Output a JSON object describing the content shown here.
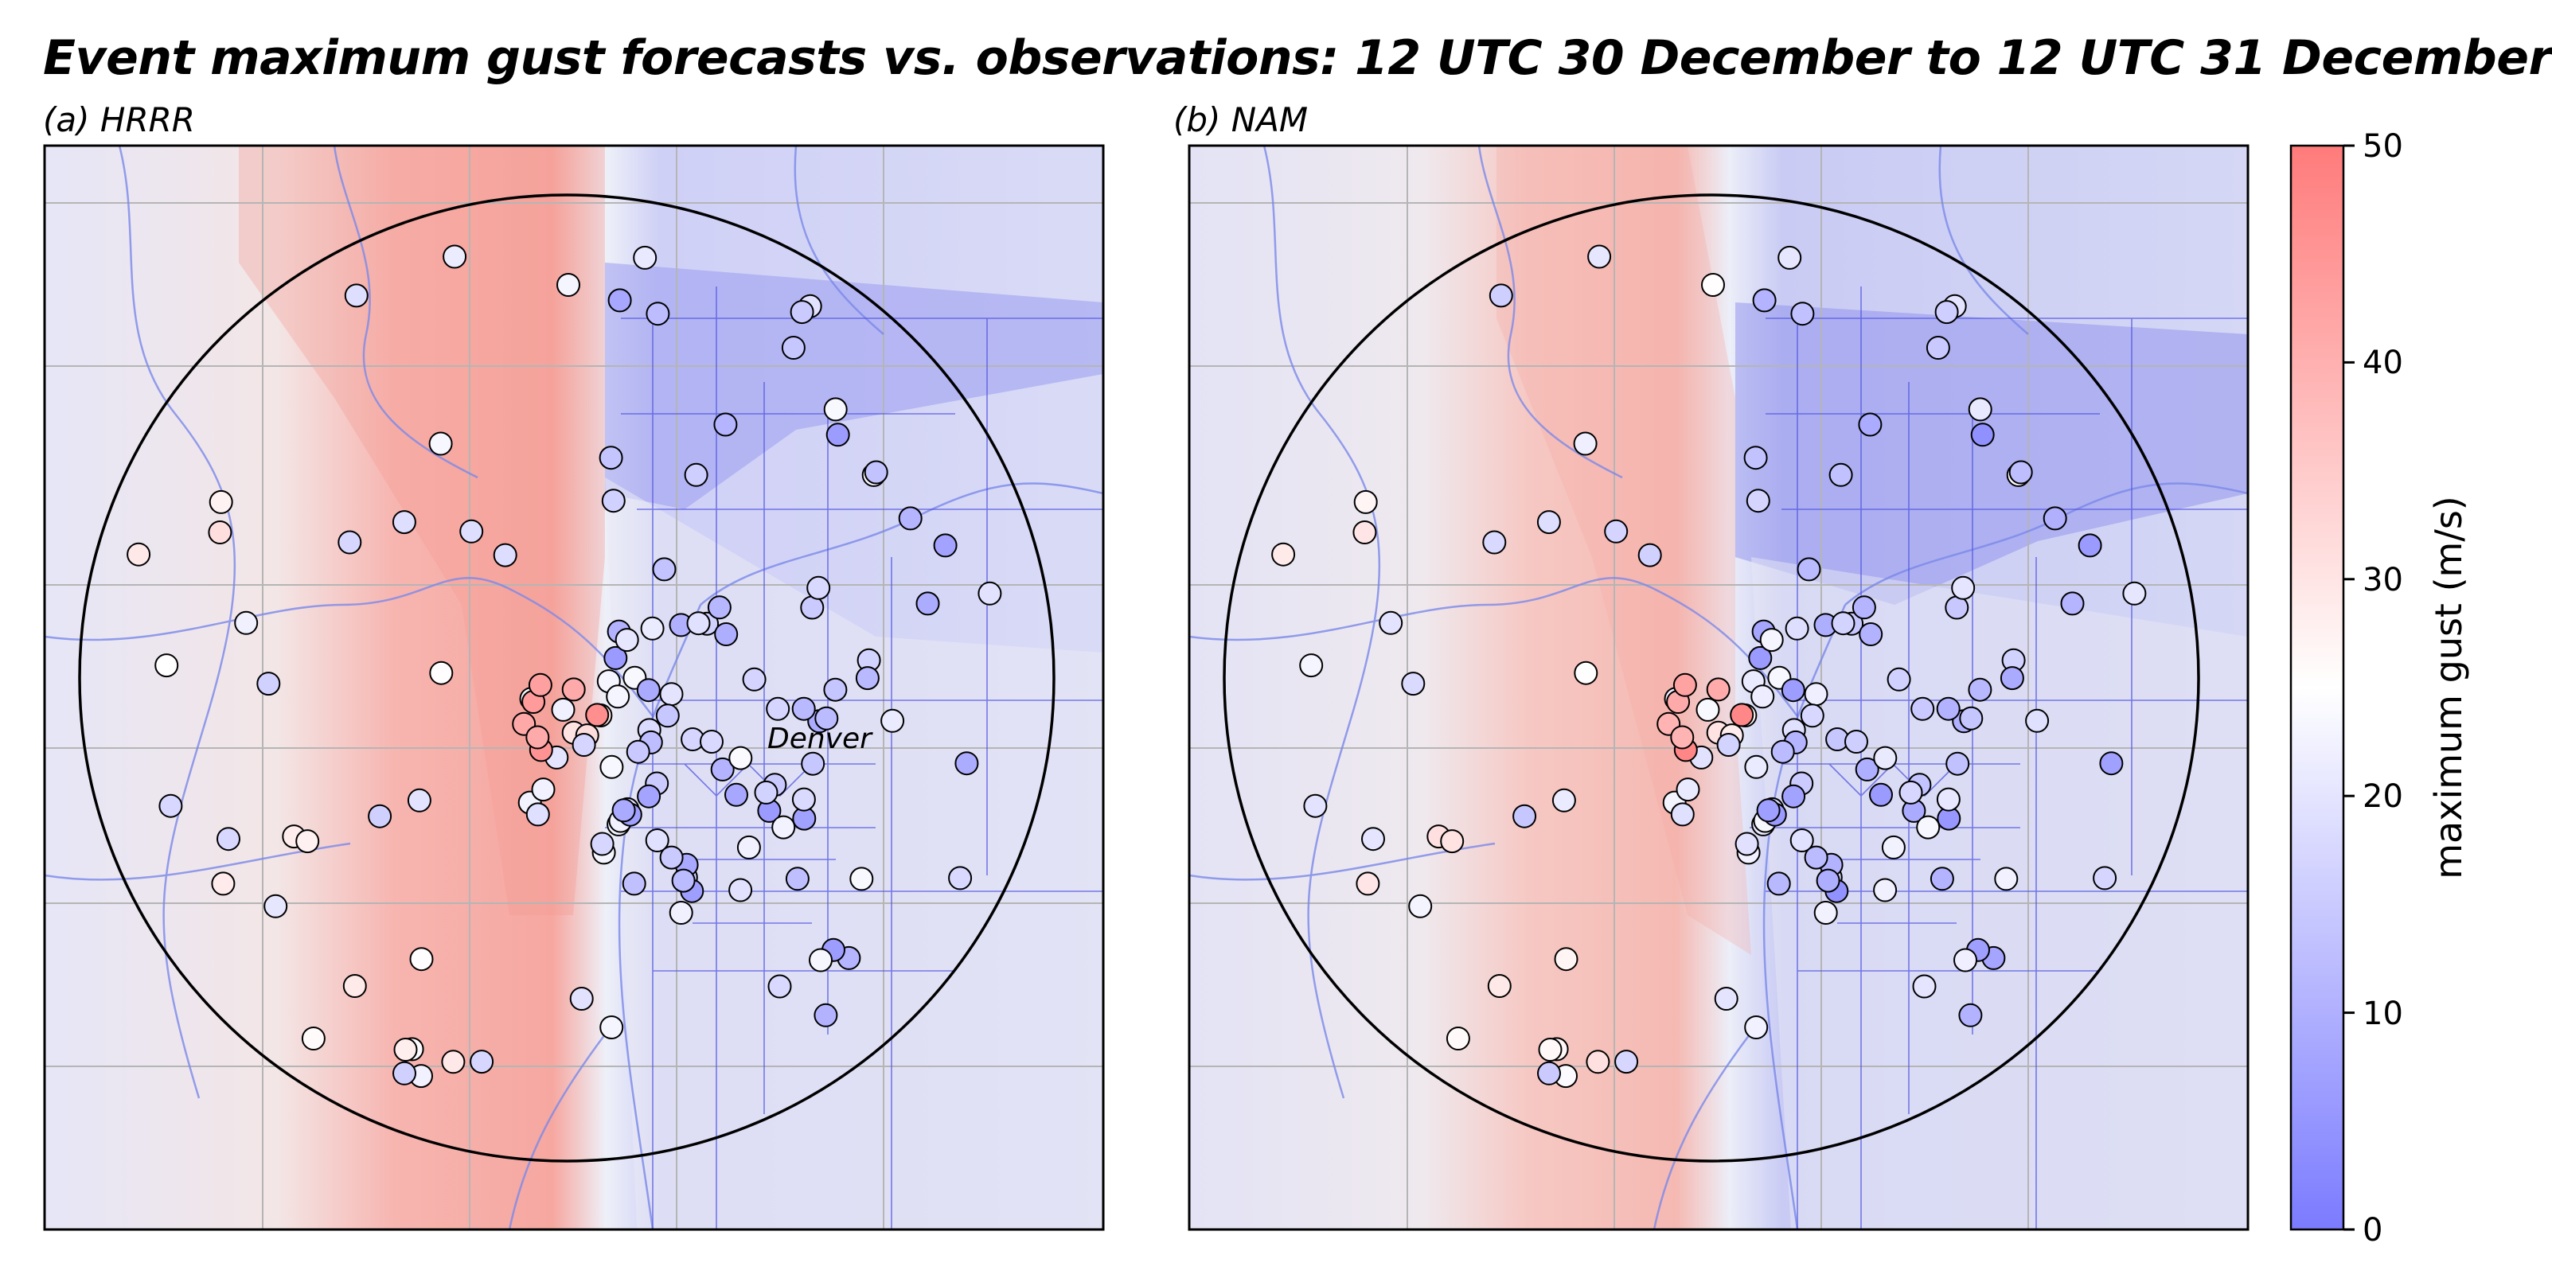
{
  "title": "Event maximum gust forecasts vs. observations: 12 UTC 30 December to 12 UTC 31 December",
  "panels": [
    {
      "id": "a",
      "label": "(a) HRRR"
    },
    {
      "id": "b",
      "label": "(b) NAM"
    }
  ],
  "city_label": "Denver",
  "colorbar": {
    "label": "maximum gust (m/s)",
    "ticks": [
      "0",
      "10",
      "20",
      "30",
      "40",
      "50"
    ],
    "range": [
      0,
      50
    ],
    "colors": {
      "low": "#7b7bff",
      "mid": "#ffffff",
      "high": "#ff7b7b"
    }
  },
  "chart_data": {
    "type": "map",
    "variable": "maximum gust (m/s)",
    "value_range": [
      0,
      50
    ],
    "observation_count_per_panel": 140
  }
}
